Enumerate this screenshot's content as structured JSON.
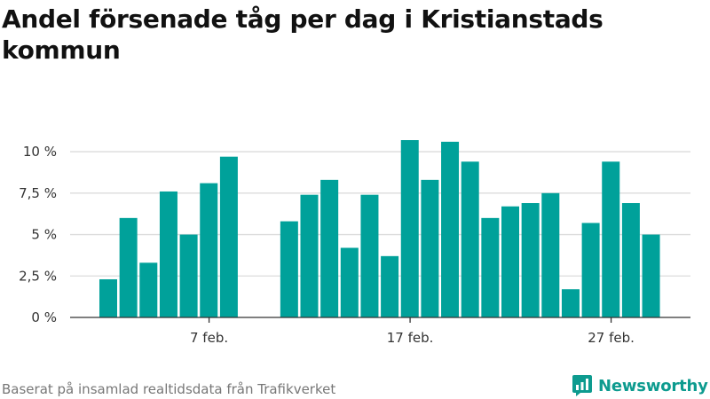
{
  "title": "Andel försenade tåg per dag i Kristianstads kommun",
  "footer": "Baserat på insamlad realtidsdata från Trafikverket",
  "brand": {
    "name": "Newsworthy",
    "icon": "bar-chart-badge-icon"
  },
  "colors": {
    "bar": "#00a19a",
    "brand": "#0d9b8f"
  },
  "chart_data": {
    "type": "bar",
    "categories": [
      "2 feb.",
      "3 feb.",
      "4 feb.",
      "5 feb.",
      "6 feb.",
      "7 feb.",
      "8 feb.",
      "9 feb.",
      "10 feb.",
      "11 feb.",
      "12 feb.",
      "13 feb.",
      "14 feb.",
      "15 feb.",
      "16 feb.",
      "17 feb.",
      "18 feb.",
      "19 feb.",
      "20 feb.",
      "21 feb.",
      "22 feb.",
      "23 feb.",
      "24 feb.",
      "25 feb.",
      "26 feb.",
      "27 feb.",
      "28 feb.",
      "29 feb."
    ],
    "values": [
      2.3,
      6.0,
      3.3,
      7.6,
      5.0,
      8.1,
      9.7,
      null,
      null,
      5.8,
      7.4,
      8.3,
      4.2,
      7.4,
      3.7,
      10.7,
      8.3,
      10.6,
      9.4,
      6.0,
      6.7,
      6.9,
      7.5,
      1.7,
      5.7,
      9.4,
      6.9,
      5.0
    ],
    "unit": "%",
    "y_ticks": [
      "0 %",
      "2,5 %",
      "5 %",
      "7,5 %",
      "10 %"
    ],
    "y_tick_values": [
      0,
      2.5,
      5,
      7.5,
      10
    ],
    "x_tick_labels": [
      {
        "category": "7 feb.",
        "label": "7 feb."
      },
      {
        "category": "17 feb.",
        "label": "17 feb."
      },
      {
        "category": "27 feb.",
        "label": "27 feb."
      }
    ],
    "ylim": [
      0,
      10.7
    ],
    "grid": true,
    "title": "Andel försenade tåg per dag i Kristianstads kommun"
  }
}
